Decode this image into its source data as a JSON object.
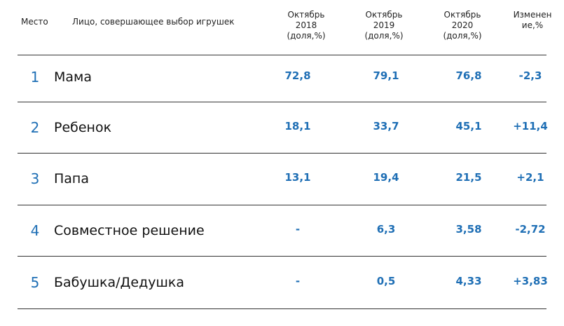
{
  "header": {
    "place": "Место",
    "person": "Лицо, совершающее выбор игрушек",
    "columns": [
      {
        "lines": [
          "Октябрь",
          "2018",
          "(доля,%)"
        ]
      },
      {
        "lines": [
          "Октябрь",
          "2019",
          "(доля,%)"
        ]
      },
      {
        "lines": [
          "Октябрь",
          "2020",
          "(доля,%)"
        ]
      },
      {
        "lines": [
          "Изменен",
          "ие,%"
        ]
      }
    ]
  },
  "rows": [
    {
      "rank": 1,
      "name": "Мама",
      "values": [
        "72,8",
        "79,1",
        "76,8",
        "-2,3"
      ]
    },
    {
      "rank": 2,
      "name": "Ребенок",
      "values": [
        "18,1",
        "33,7",
        "45,1",
        "+11,4"
      ]
    },
    {
      "rank": 3,
      "name": "Папа",
      "values": [
        "13,1",
        "19,4",
        "21,5",
        "+2,1"
      ]
    },
    {
      "rank": 4,
      "name": "Совместное решение",
      "values": [
        "-",
        "6,3",
        "3,58",
        "-2,72"
      ]
    },
    {
      "rank": 5,
      "name": "Бабушка/Дедушка",
      "values": [
        "-",
        "0,5",
        "4,33",
        "+3,83"
      ]
    }
  ]
}
